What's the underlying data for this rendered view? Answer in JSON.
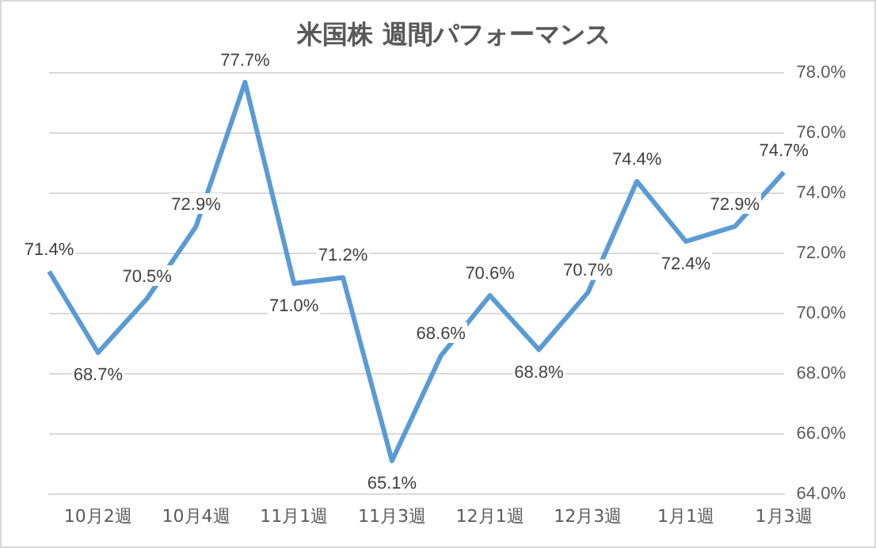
{
  "chart_data": {
    "type": "line",
    "title": "米国株 週間パフォーマンス",
    "categories": [
      null,
      "10月2週",
      null,
      "10月4週",
      null,
      "11月1週",
      null,
      "11月3週",
      null,
      "12月1週",
      null,
      "12月3週",
      null,
      "1月1週",
      null,
      "1月3週"
    ],
    "series": [
      {
        "color": "#5b9bd5",
        "values": [
          71.4,
          68.7,
          70.5,
          72.9,
          77.7,
          71.0,
          71.2,
          65.1,
          68.6,
          70.6,
          68.8,
          70.7,
          74.4,
          72.4,
          72.9,
          74.7
        ],
        "value_labels": [
          "71.4%",
          "68.7%",
          "70.5%",
          "72.9%",
          "77.7%",
          "71.0%",
          "71.2%",
          "65.1%",
          "68.6%",
          "70.6%",
          "68.8%",
          "70.7%",
          "74.4%",
          "72.4%",
          "72.9%",
          "74.7%"
        ]
      }
    ],
    "ylim": [
      64,
      78
    ],
    "yticks": [
      {
        "value": 64,
        "label": "64.0%"
      },
      {
        "value": 66,
        "label": "66.0%"
      },
      {
        "value": 68,
        "label": "68.0%"
      },
      {
        "value": 70,
        "label": "70.0%"
      },
      {
        "value": 72,
        "label": "72.0%"
      },
      {
        "value": 74,
        "label": "74.0%"
      },
      {
        "value": 76,
        "label": "76.0%"
      },
      {
        "value": 78,
        "label": "78.0%"
      }
    ],
    "grid": "y",
    "legend": false,
    "marker": "none",
    "line_style": "solid"
  }
}
